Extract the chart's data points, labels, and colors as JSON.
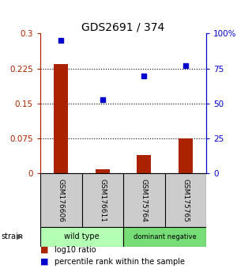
{
  "title": "GDS2691 / 374",
  "samples": [
    "GSM176606",
    "GSM176611",
    "GSM175764",
    "GSM175765"
  ],
  "log10_ratio": [
    0.235,
    0.01,
    0.04,
    0.075
  ],
  "percentile_rank": [
    95,
    53,
    70,
    77
  ],
  "groups": [
    {
      "label": "wild type",
      "indices": [
        0,
        1
      ],
      "color": "#b3ffb3"
    },
    {
      "label": "dominant negative",
      "indices": [
        2,
        3
      ],
      "color": "#77dd77"
    }
  ],
  "bar_color": "#aa2200",
  "dot_color": "#0000cc",
  "left_ylim": [
    0,
    0.3
  ],
  "right_ylim": [
    0,
    100
  ],
  "left_yticks": [
    0,
    0.075,
    0.15,
    0.225,
    0.3
  ],
  "left_yticklabels": [
    "0",
    "0.075",
    "0.15",
    "0.225",
    "0.3"
  ],
  "right_yticks": [
    0,
    25,
    50,
    75,
    100
  ],
  "right_yticklabels": [
    "0",
    "25",
    "50",
    "75",
    "100%"
  ],
  "legend_log10": "log10 ratio",
  "legend_percentile": "percentile rank within the sample",
  "strain_label": "strain",
  "bar_width": 0.35,
  "sample_box_color": "#cccccc",
  "fig_bg": "#ffffff"
}
